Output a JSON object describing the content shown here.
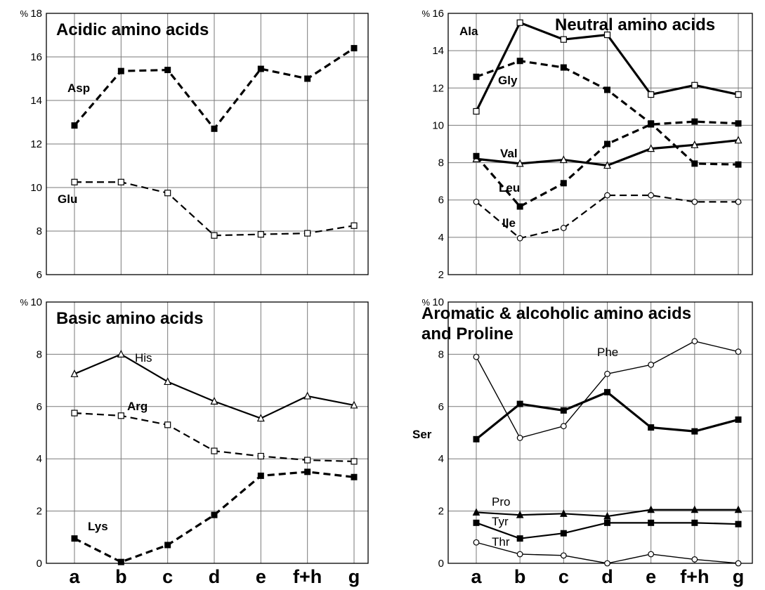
{
  "chart_data": [
    {
      "type": "line",
      "title": "Acidic amino acids",
      "unit": "%",
      "categories": [
        "a",
        "b",
        "c",
        "d",
        "e",
        "f+h",
        "g"
      ],
      "ylim": [
        6,
        18
      ],
      "yticks": [
        6,
        8,
        10,
        12,
        14,
        16,
        18
      ],
      "grid": true,
      "series": [
        {
          "name": "Asp",
          "style": "dashed",
          "weight": "thick",
          "marker": "filled-square",
          "label_weight": "bold",
          "values": [
            12.85,
            15.35,
            15.4,
            12.7,
            15.45,
            15.0,
            16.4
          ]
        },
        {
          "name": "Glu",
          "style": "dashed",
          "weight": "medium",
          "marker": "open-square",
          "label_weight": "bold",
          "values": [
            10.25,
            10.25,
            9.75,
            7.8,
            7.85,
            7.9,
            8.25
          ]
        }
      ]
    },
    {
      "type": "line",
      "title": "Neutral amino acids",
      "unit": "%",
      "categories": [
        "a",
        "b",
        "c",
        "d",
        "e",
        "f+h",
        "g"
      ],
      "ylim": [
        2,
        16
      ],
      "yticks": [
        2,
        4,
        6,
        8,
        10,
        12,
        14,
        16
      ],
      "grid": true,
      "series": [
        {
          "name": "Ala",
          "style": "solid",
          "weight": "thick",
          "marker": "open-square",
          "label_weight": "bold",
          "values": [
            10.75,
            15.5,
            14.6,
            14.85,
            11.65,
            12.15,
            11.65
          ]
        },
        {
          "name": "Gly",
          "style": "dashed",
          "weight": "thick",
          "marker": "filled-square",
          "label_weight": "bold",
          "values": [
            12.6,
            13.45,
            13.1,
            11.9,
            10.1,
            7.95,
            7.9
          ]
        },
        {
          "name": "Val",
          "style": "solid",
          "weight": "thick",
          "marker": "open-triangle",
          "label_weight": "bold",
          "values": [
            8.2,
            7.95,
            8.15,
            7.85,
            8.75,
            8.95,
            9.2
          ]
        },
        {
          "name": "Leu",
          "style": "dashed",
          "weight": "thick",
          "marker": "filled-square",
          "label_weight": "bold",
          "values": [
            8.35,
            5.65,
            6.9,
            9.0,
            10.05,
            10.2,
            10.1
          ]
        },
        {
          "name": "Ile",
          "style": "dashed",
          "weight": "medium",
          "marker": "open-circle",
          "label_weight": "bold",
          "values": [
            5.9,
            3.95,
            4.5,
            6.25,
            6.25,
            5.9,
            5.9
          ]
        }
      ]
    },
    {
      "type": "line",
      "title": "Basic amino acids",
      "unit": "%",
      "categories": [
        "a",
        "b",
        "c",
        "d",
        "e",
        "f+h",
        "g"
      ],
      "ylim": [
        0,
        10
      ],
      "yticks": [
        0,
        2,
        4,
        6,
        8,
        10
      ],
      "grid": true,
      "series": [
        {
          "name": "His",
          "style": "solid",
          "weight": "medium",
          "marker": "open-triangle",
          "label_weight": "normal",
          "values": [
            7.25,
            8.0,
            6.95,
            6.2,
            5.55,
            6.4,
            6.05
          ]
        },
        {
          "name": "Arg",
          "style": "dashed",
          "weight": "medium",
          "marker": "open-square",
          "label_weight": "bold",
          "values": [
            5.75,
            5.65,
            5.3,
            4.3,
            4.1,
            3.95,
            3.9
          ]
        },
        {
          "name": "Lys",
          "style": "dashed",
          "weight": "thick",
          "marker": "filled-square",
          "label_weight": "bold",
          "values": [
            0.95,
            0.05,
            0.7,
            1.85,
            3.35,
            3.5,
            3.3
          ]
        }
      ]
    },
    {
      "type": "line",
      "title": "Aromatic & alcoholic amino acids",
      "subtitle": "and Proline",
      "unit": "%",
      "categories": [
        "a",
        "b",
        "c",
        "d",
        "e",
        "f+h",
        "g"
      ],
      "ylim": [
        0,
        10
      ],
      "yticks": [
        0,
        2,
        4,
        6,
        8,
        10
      ],
      "grid": true,
      "series": [
        {
          "name": "Phe",
          "style": "solid",
          "weight": "thin",
          "marker": "open-circle",
          "label_weight": "normal",
          "values": [
            7.9,
            4.8,
            5.25,
            7.25,
            7.6,
            8.5,
            8.1
          ]
        },
        {
          "name": "Ser",
          "style": "solid",
          "weight": "thick",
          "marker": "filled-square",
          "label_weight": "bold",
          "values": [
            4.75,
            6.1,
            5.85,
            6.55,
            5.2,
            5.05,
            5.5
          ]
        },
        {
          "name": "Pro",
          "style": "solid",
          "weight": "medium",
          "marker": "filled-triangle",
          "label_weight": "normal",
          "values": [
            1.95,
            1.85,
            1.9,
            1.8,
            2.05,
            2.05,
            2.05
          ]
        },
        {
          "name": "Tyr",
          "style": "solid",
          "weight": "medium",
          "marker": "filled-square",
          "label_weight": "normal",
          "values": [
            1.55,
            0.95,
            1.15,
            1.55,
            1.55,
            1.55,
            1.5
          ]
        },
        {
          "name": "Thr",
          "style": "solid",
          "weight": "thin",
          "marker": "open-circle",
          "label_weight": "normal",
          "values": [
            0.8,
            0.35,
            0.3,
            0.0,
            0.35,
            0.15,
            0.0
          ]
        }
      ]
    }
  ]
}
